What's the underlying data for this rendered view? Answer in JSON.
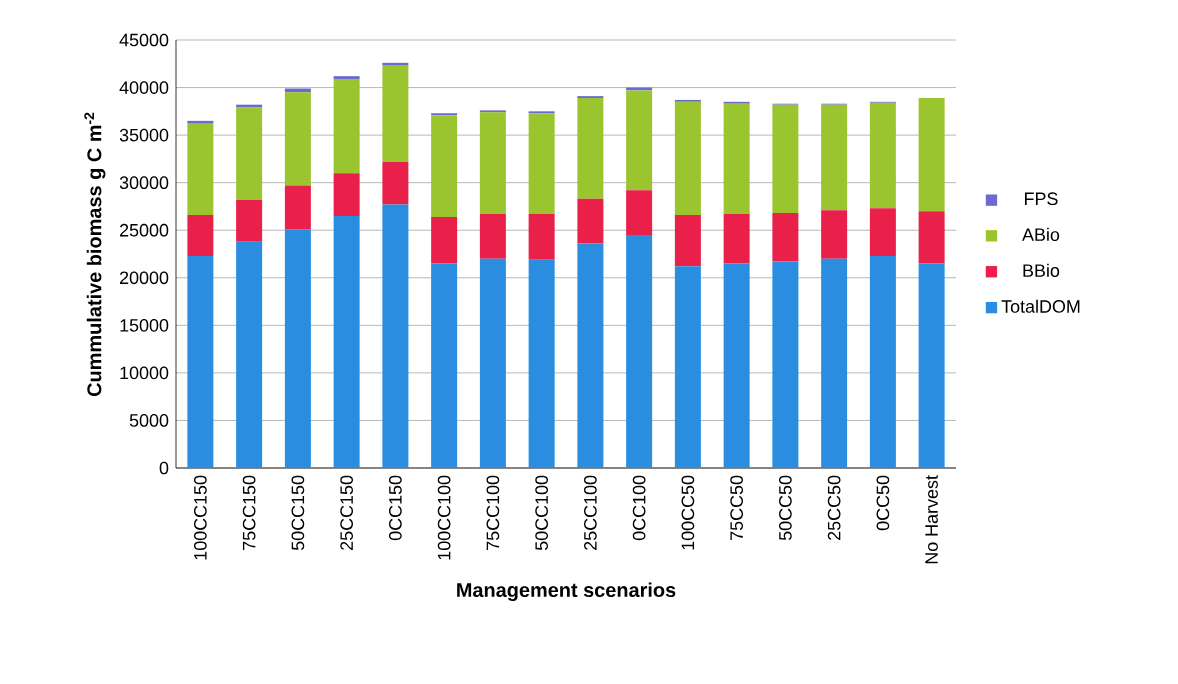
{
  "chart_data": {
    "type": "bar",
    "stacked": true,
    "xlabel": "Management scenarios",
    "ylabel": "Cummulative biomass g C m$^{-2}$",
    "categories": [
      "100CC150",
      "75CC150",
      "50CC150",
      "25CC150",
      "0CC150",
      "100CC100",
      "75CC100",
      "50CC100",
      "25CC100",
      "0CC100",
      "100CC50",
      "75CC50",
      "50CC50",
      "25CC50",
      "0CC50",
      "No Harvest"
    ],
    "series": [
      {
        "name": "TotalDOM",
        "color": "#2a8de0",
        "values": [
          22300,
          23800,
          25100,
          26500,
          27700,
          21500,
          22000,
          21900,
          23600,
          24500,
          21200,
          21500,
          21700,
          22000,
          22300,
          21500
        ]
      },
      {
        "name": "BBio",
        "color": "#e8204a",
        "values": [
          4300,
          4400,
          4600,
          4500,
          4500,
          4900,
          4700,
          4800,
          4700,
          4700,
          5400,
          5200,
          5100,
          5100,
          5000,
          5500
        ]
      },
      {
        "name": "ABio",
        "color": "#9bc52e",
        "values": [
          9600,
          9700,
          9800,
          9900,
          10100,
          10700,
          10700,
          10600,
          10600,
          10500,
          11900,
          11600,
          11400,
          11100,
          11100,
          11900
        ]
      },
      {
        "name": "FPS",
        "color": "#6a6ad0",
        "values": [
          300,
          300,
          400,
          300,
          300,
          200,
          200,
          200,
          200,
          300,
          200,
          200,
          100,
          100,
          100,
          0
        ]
      }
    ],
    "ylim": [
      0,
      45000
    ],
    "yticks": [
      0,
      5000,
      10000,
      15000,
      20000,
      25000,
      30000,
      35000,
      40000,
      45000
    ],
    "grid": "y",
    "legend": "right"
  }
}
